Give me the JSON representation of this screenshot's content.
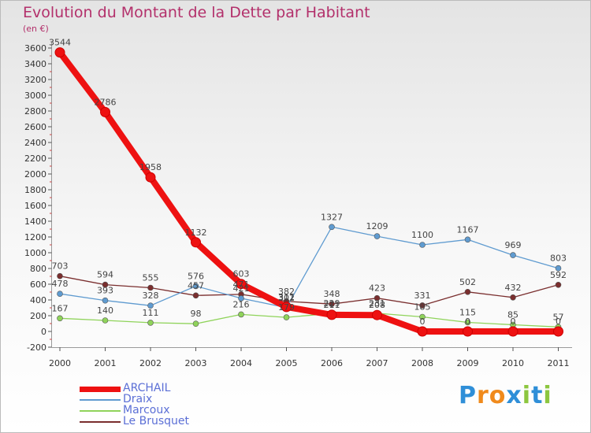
{
  "title": "Evolution du Montant de la Dette par Habitant",
  "unit": "(en €)",
  "brand": {
    "text": "Proxiti",
    "letters": [
      "P",
      "r",
      "o",
      "x",
      "i",
      "t",
      "i"
    ],
    "colors": [
      "#2f8fd8",
      "#f08a1c",
      "#f08a1c",
      "#2f8fd8",
      "#8cc63f",
      "#2f8fd8",
      "#8cc63f"
    ]
  },
  "chart_data": {
    "type": "line",
    "x": [
      "2000",
      "2001",
      "2002",
      "2003",
      "2004",
      "2005",
      "2006",
      "2007",
      "2008",
      "2009",
      "2010",
      "2011"
    ],
    "ylim": [
      -200,
      3600
    ],
    "yticks": [
      -200,
      0,
      200,
      400,
      600,
      800,
      1000,
      1200,
      1400,
      1600,
      1800,
      2000,
      2200,
      2400,
      2600,
      2800,
      3000,
      3200,
      3400,
      3600
    ],
    "grid": false,
    "legend_position": "bottom-left",
    "series": [
      {
        "name": "Le Brusquet",
        "color": "#7a2e2e",
        "values": [
          703,
          594,
          555,
          457,
          471,
          382,
          348,
          423,
          331,
          502,
          432,
          592
        ]
      },
      {
        "name": "Marcoux",
        "color": "#8fd35a",
        "values": [
          167,
          140,
          111,
          98,
          216,
          179,
          229,
          231,
          185,
          115,
          85,
          57
        ]
      },
      {
        "name": "Draix",
        "color": "#5f9bd0",
        "values": [
          478,
          393,
          328,
          576,
          421,
          302,
          1327,
          1209,
          1100,
          1167,
          969,
          803
        ]
      },
      {
        "name": "ARCHAIL",
        "color": "#ee1111",
        "values": [
          3544,
          2786,
          1958,
          1132,
          603,
          311,
          211,
          208,
          0,
          0,
          0,
          0
        ]
      }
    ],
    "legend_order": [
      "ARCHAIL",
      "Draix",
      "Marcoux",
      "Le Brusquet"
    ]
  }
}
